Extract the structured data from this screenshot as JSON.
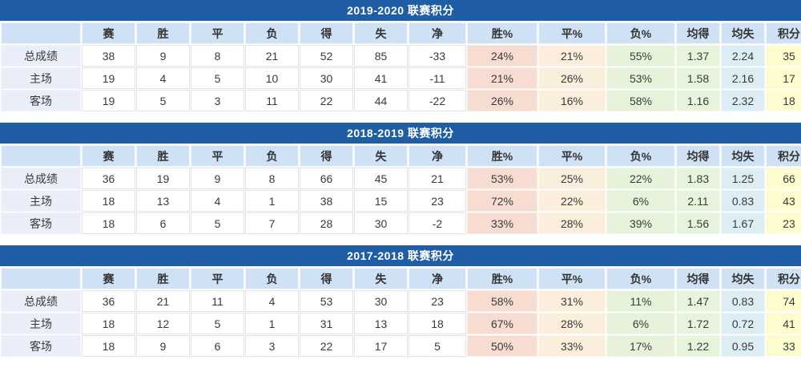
{
  "colors": {
    "title_bg": "#1f5da4",
    "title_text": "#ffffff",
    "header_bg": "#cfe1f4",
    "label_bg": "#e9eef8",
    "cell_bg": "#ffffff",
    "win_pct_bg": "#f7dcd2",
    "draw_pct_bg": "#fbeedc",
    "loss_pct_bg": "#e6f3da",
    "avg_for_bg": "#e7f4dc",
    "avg_against_bg": "#dcedf4",
    "points_bg": "#fdfccf"
  },
  "columns": [
    "",
    "赛",
    "胜",
    "平",
    "负",
    "得",
    "失",
    "净",
    "胜%",
    "平%",
    "负%",
    "均得",
    "均失",
    "积分"
  ],
  "tables": [
    {
      "title": "2019-2020 联赛积分",
      "rows": [
        {
          "label": "总成绩",
          "values": [
            "38",
            "9",
            "8",
            "21",
            "52",
            "85",
            "-33",
            "24%",
            "21%",
            "55%",
            "1.37",
            "2.24",
            "35"
          ]
        },
        {
          "label": "主场",
          "values": [
            "19",
            "4",
            "5",
            "10",
            "30",
            "41",
            "-11",
            "21%",
            "26%",
            "53%",
            "1.58",
            "2.16",
            "17"
          ]
        },
        {
          "label": "客场",
          "values": [
            "19",
            "5",
            "3",
            "11",
            "22",
            "44",
            "-22",
            "26%",
            "16%",
            "58%",
            "1.16",
            "2.32",
            "18"
          ]
        }
      ]
    },
    {
      "title": "2018-2019 联赛积分",
      "rows": [
        {
          "label": "总成绩",
          "values": [
            "36",
            "19",
            "9",
            "8",
            "66",
            "45",
            "21",
            "53%",
            "25%",
            "22%",
            "1.83",
            "1.25",
            "66"
          ]
        },
        {
          "label": "主场",
          "values": [
            "18",
            "13",
            "4",
            "1",
            "38",
            "15",
            "23",
            "72%",
            "22%",
            "6%",
            "2.11",
            "0.83",
            "43"
          ]
        },
        {
          "label": "客场",
          "values": [
            "18",
            "6",
            "5",
            "7",
            "28",
            "30",
            "-2",
            "33%",
            "28%",
            "39%",
            "1.56",
            "1.67",
            "23"
          ]
        }
      ]
    },
    {
      "title": "2017-2018 联赛积分",
      "rows": [
        {
          "label": "总成绩",
          "values": [
            "36",
            "21",
            "11",
            "4",
            "53",
            "30",
            "23",
            "58%",
            "31%",
            "11%",
            "1.47",
            "0.83",
            "74"
          ]
        },
        {
          "label": "主场",
          "values": [
            "18",
            "12",
            "5",
            "1",
            "31",
            "13",
            "18",
            "67%",
            "28%",
            "6%",
            "1.72",
            "0.72",
            "41"
          ]
        },
        {
          "label": "客场",
          "values": [
            "18",
            "9",
            "6",
            "3",
            "22",
            "17",
            "5",
            "50%",
            "33%",
            "17%",
            "1.22",
            "0.95",
            "33"
          ]
        }
      ]
    }
  ]
}
